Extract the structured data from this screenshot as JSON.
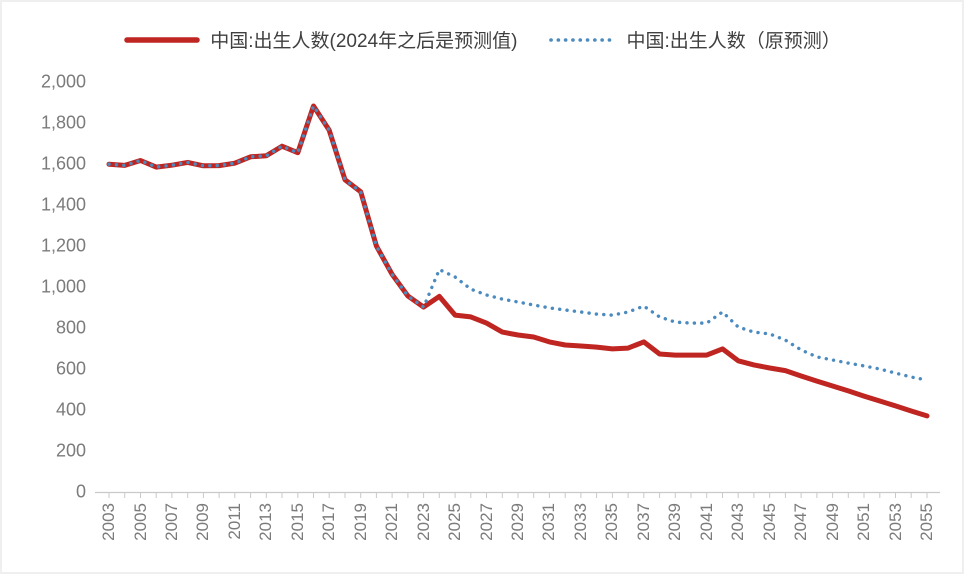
{
  "legend": {
    "position": "top"
  },
  "colors": {
    "actual_line": "#bf2521",
    "forecast_line": "#4b8bbf",
    "axis_line": "#c9c9c9",
    "axis_labels": "#7b7b7b",
    "legend_text": "#404040"
  },
  "chart_data": {
    "type": "line",
    "title": "",
    "xlabel": "",
    "ylabel": "",
    "grid": false,
    "legend_position": "top",
    "ylim": [
      0,
      2000
    ],
    "ytick_step": 200,
    "y_tick_labels": [
      "0",
      "200",
      "400",
      "600",
      "800",
      "1,000",
      "1,200",
      "1,400",
      "1,600",
      "1,800",
      "2,000"
    ],
    "x_tick_labels": [
      "2003",
      "2005",
      "2007",
      "2009",
      "2011",
      "2013",
      "2015",
      "2017",
      "2019",
      "2021",
      "2023",
      "2025",
      "2027",
      "2029",
      "2031",
      "2033",
      "2035",
      "2037",
      "2039",
      "2041",
      "2043",
      "2045",
      "2047",
      "2049",
      "2051",
      "2053",
      "2055"
    ],
    "x": [
      2003,
      2004,
      2005,
      2006,
      2007,
      2008,
      2009,
      2010,
      2011,
      2012,
      2013,
      2014,
      2015,
      2016,
      2017,
      2018,
      2019,
      2020,
      2021,
      2022,
      2023,
      2024,
      2025,
      2026,
      2027,
      2028,
      2029,
      2030,
      2031,
      2032,
      2033,
      2034,
      2035,
      2036,
      2037,
      2038,
      2039,
      2040,
      2041,
      2042,
      2043,
      2044,
      2045,
      2046,
      2047,
      2048,
      2049,
      2050,
      2051,
      2052,
      2053,
      2054,
      2055
    ],
    "series": [
      {
        "name": "中国:出生人数(2024年之后是预测值)",
        "style": "solid",
        "color": "#bf2521",
        "values": [
          1599,
          1593,
          1617,
          1585,
          1594,
          1608,
          1591,
          1592,
          1604,
          1635,
          1640,
          1687,
          1655,
          1883,
          1765,
          1523,
          1465,
          1200,
          1062,
          956,
          902,
          954,
          863,
          854,
          824,
          780,
          766,
          756,
          732,
          717,
          712,
          707,
          698,
          702,
          732,
          673,
          668,
          668,
          668,
          698,
          640,
          620,
          605,
          592,
          566,
          541,
          517,
          493,
          468,
          444,
          420,
          395,
          371
        ]
      },
      {
        "name": "中国:出生人数（原预测）",
        "style": "dotted",
        "color": "#4b8bbf",
        "values": [
          1599,
          1593,
          1617,
          1585,
          1594,
          1608,
          1591,
          1592,
          1604,
          1635,
          1640,
          1687,
          1655,
          1883,
          1765,
          1523,
          1465,
          1200,
          1062,
          956,
          902,
          1085,
          1049,
          990,
          961,
          941,
          927,
          912,
          898,
          888,
          878,
          868,
          863,
          878,
          907,
          854,
          829,
          824,
          824,
          878,
          805,
          780,
          771,
          741,
          693,
          659,
          644,
          629,
          615,
          600,
          580,
          561,
          546
        ]
      }
    ]
  }
}
